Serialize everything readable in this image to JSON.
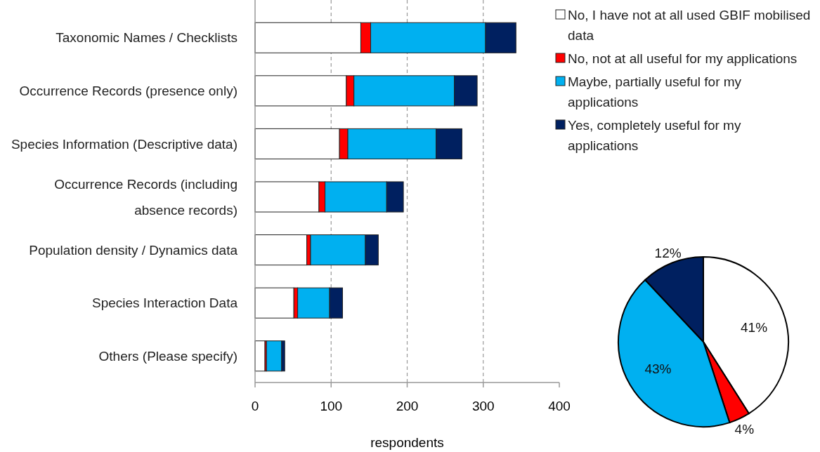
{
  "chart_data": [
    {
      "type": "bar",
      "orientation": "horizontal",
      "stacked": true,
      "xlabel": "respondents",
      "categories": [
        "Taxonomic Names / Checklists",
        "Occurrence Records (presence only)",
        "Species Information (Descriptive data)",
        "Occurrence Records (including absence records)",
        "Population density / Dynamics data",
        "Species Interaction Data",
        "Others (Please specify)"
      ],
      "series": [
        {
          "name": "No, I have not at all used GBIF mobilised data",
          "color": "#ffffff",
          "values": [
            139,
            120,
            111,
            84,
            68,
            51,
            13
          ]
        },
        {
          "name": "No, not at all useful for my applications",
          "color": "#ff0000",
          "values": [
            13,
            10,
            11,
            8,
            5,
            5,
            2
          ]
        },
        {
          "name": "Maybe, partially useful for my applications",
          "color": "#00b0f0",
          "values": [
            151,
            132,
            116,
            81,
            72,
            42,
            20
          ]
        },
        {
          "name": "Yes, completely useful for my applications",
          "color": "#002060",
          "values": [
            40,
            30,
            34,
            22,
            17,
            17,
            4
          ]
        }
      ],
      "xlim": [
        0,
        400
      ],
      "xticks": [
        0,
        100,
        200,
        300,
        400
      ],
      "grid": "x",
      "legend": "top right"
    },
    {
      "type": "pie",
      "categories": [
        null,
        null,
        null,
        null
      ],
      "values": [
        41,
        4,
        43,
        12
      ],
      "colors": [
        "#ffffff",
        "#ff0000",
        "#00b0f0",
        "#002060"
      ],
      "value_labels": [
        "41%",
        "4%",
        "43%",
        "12%"
      ]
    }
  ]
}
